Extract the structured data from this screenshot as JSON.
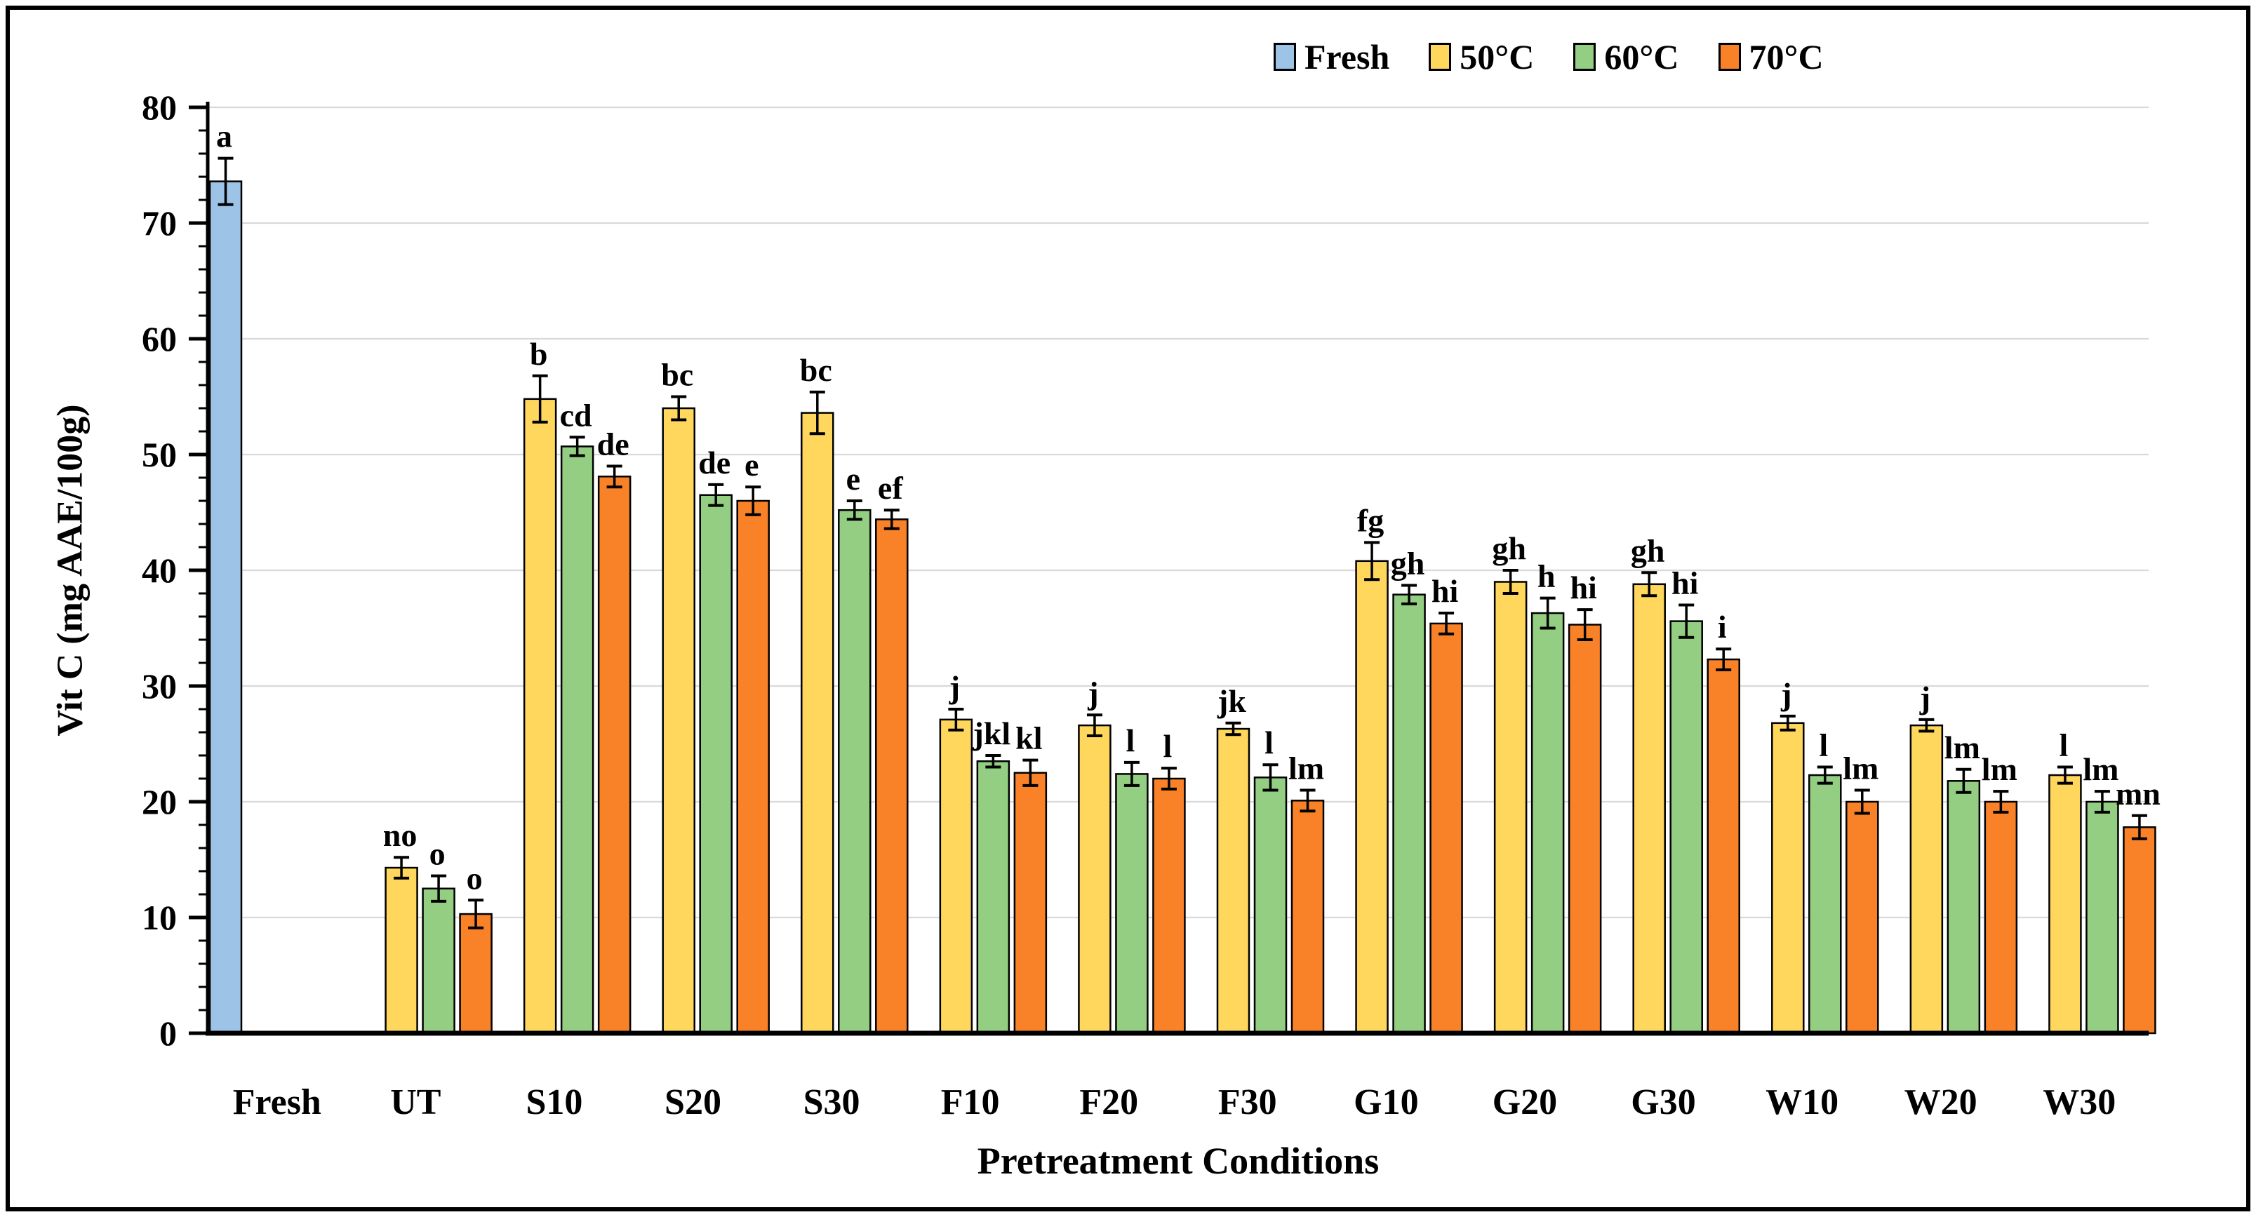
{
  "figure": {
    "background_color": "#FFFFFF",
    "border_color": "#000000"
  },
  "chart_data": {
    "type": "bar",
    "title": "",
    "xlabel": "Pretreatment Conditions",
    "ylabel": "Vit C (mg AAE/100g)",
    "ylim": [
      0,
      80
    ],
    "ytick_interval": 10,
    "yminor_interval": 2,
    "grid": "horizontal-major",
    "gridline_color": "#D9D9D9",
    "legend_position": "top-right",
    "error_bars": true,
    "categories": [
      "Fresh",
      "UT",
      "S10",
      "S20",
      "S30",
      "F10",
      "F20",
      "F30",
      "G10",
      "G20",
      "G30",
      "W10",
      "W20",
      "W30"
    ],
    "series": [
      {
        "name": "Fresh",
        "color": "#9DC3E6",
        "values": [
          73.6,
          null,
          null,
          null,
          null,
          null,
          null,
          null,
          null,
          null,
          null,
          null,
          null,
          null
        ],
        "errors": [
          2.0,
          null,
          null,
          null,
          null,
          null,
          null,
          null,
          null,
          null,
          null,
          null,
          null,
          null
        ],
        "letters": [
          "a",
          null,
          null,
          null,
          null,
          null,
          null,
          null,
          null,
          null,
          null,
          null,
          null,
          null
        ]
      },
      {
        "name": "50°C",
        "color": "#FFD75C",
        "values": [
          null,
          14.3,
          54.8,
          54.0,
          53.6,
          27.1,
          26.6,
          26.3,
          40.8,
          39.0,
          38.8,
          26.8,
          26.6,
          22.3
        ],
        "errors": [
          null,
          0.9,
          2.0,
          1.0,
          1.8,
          0.9,
          0.9,
          0.5,
          1.6,
          1.0,
          1.0,
          0.6,
          0.5,
          0.7
        ],
        "letters": [
          null,
          "no",
          "b",
          "bc",
          "bc",
          "j",
          "j",
          "jk",
          "fg",
          "gh",
          "gh",
          "j",
          "j",
          "l"
        ]
      },
      {
        "name": "60°C",
        "color": "#94CE83",
        "values": [
          null,
          12.5,
          50.7,
          46.5,
          45.2,
          23.5,
          22.4,
          22.1,
          37.9,
          36.3,
          35.6,
          22.3,
          21.8,
          20.0
        ],
        "errors": [
          null,
          1.1,
          0.8,
          0.9,
          0.8,
          0.5,
          1.0,
          1.1,
          0.8,
          1.3,
          1.4,
          0.7,
          1.0,
          0.9
        ],
        "letters": [
          null,
          "o",
          "cd",
          "de",
          "e",
          "jkl",
          "l",
          "l",
          "gh",
          "h",
          "hi",
          "l",
          "lm",
          "lm"
        ]
      },
      {
        "name": "70°C",
        "color": "#F98228",
        "values": [
          null,
          10.3,
          48.1,
          46.0,
          44.4,
          22.5,
          22.0,
          20.1,
          35.4,
          35.3,
          32.3,
          20.0,
          20.0,
          17.8
        ],
        "errors": [
          null,
          1.2,
          0.9,
          1.2,
          0.8,
          1.1,
          0.9,
          0.9,
          0.9,
          1.3,
          0.9,
          1.0,
          0.9,
          1.0
        ],
        "letters": [
          null,
          "o",
          "de",
          "e",
          "ef",
          "kl",
          "l",
          "lm",
          "hi",
          "hi",
          "i",
          "lm",
          "lm",
          "mn"
        ]
      }
    ]
  }
}
